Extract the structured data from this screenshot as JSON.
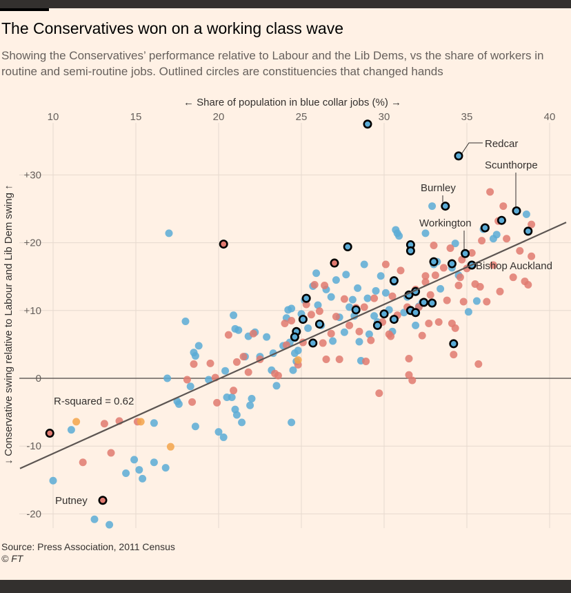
{
  "header": {
    "title": "The Conservatives won on a working class wave",
    "subtitle": "Showing the Conservatives’ performance relative to Labour and the Lib Dems, vs the share of workers in routine and semi-routine jobs. Outlined circles are constituencies that changed hands"
  },
  "footer": {
    "source": "Source: Press Association, 2011 Census",
    "credit": "© FT"
  },
  "colors": {
    "background": "#fff1e5",
    "labour_held": "#5aabd6",
    "conservative_held": "#e07a70",
    "libdem_held": "#f3a44b",
    "outline": "#000000",
    "grid": "#e6d9ce",
    "regression": "#5c5552"
  },
  "chart_data": {
    "type": "scatter",
    "title": "The Conservatives won on a working class wave",
    "xlabel": "← Share of population in blue collar jobs (%) →",
    "ylabel": "↓ Conservative swing relative to Labour and Lib Dem swing ↑",
    "xlim": [
      8,
      41
    ],
    "ylim": [
      -22,
      38
    ],
    "x_ticks": [
      "10",
      "15",
      "20",
      "25",
      "30",
      "35",
      "40"
    ],
    "x_tick_values": [
      10,
      15,
      20,
      25,
      30,
      35,
      40
    ],
    "y_ticks": [
      "+30",
      "+20",
      "+10",
      "0",
      "-10",
      "-20"
    ],
    "y_tick_values": [
      30,
      20,
      10,
      0,
      -10,
      -20
    ],
    "x_axis_position": "top",
    "grid": true,
    "r_squared_label": "R-squared = 0.62",
    "regression_line": {
      "x1": 8,
      "y1": -13.3,
      "x2": 41,
      "y2": 23.0
    },
    "annotations": [
      {
        "label": "Redcar",
        "x": 34.5,
        "y": 32.8
      },
      {
        "label": "Scunthorpe",
        "x": 38.0,
        "y": 24.7
      },
      {
        "label": "Burnley",
        "x": 33.7,
        "y": 25.4
      },
      {
        "label": "Workington",
        "x": 34.9,
        "y": 18.4
      },
      {
        "label": "Bishop Auckland",
        "x": 35.3,
        "y": 16.7
      },
      {
        "label": "Putney",
        "x": 13.0,
        "y": -18.0
      }
    ],
    "series": [
      {
        "key": "lab",
        "fill": "#5aabd6",
        "points": [
          [
            17,
            21.4
          ],
          [
            16.9,
            0
          ],
          [
            17.5,
            -3.4
          ],
          [
            17.6,
            -3.8
          ],
          [
            18,
            8.4
          ],
          [
            18.5,
            3.8
          ],
          [
            18.6,
            3.3
          ],
          [
            18.8,
            4.8
          ],
          [
            18.6,
            -7.1
          ],
          [
            18.3,
            -1.2
          ],
          [
            19.4,
            -0.2
          ],
          [
            20,
            -7.9
          ],
          [
            20.3,
            -8.7
          ],
          [
            20.5,
            -2.8
          ],
          [
            20.4,
            1.1
          ],
          [
            20.8,
            -2.8
          ],
          [
            21,
            -4.6
          ],
          [
            21.1,
            -5.4
          ],
          [
            21.4,
            -6.5
          ],
          [
            21.6,
            3.2
          ],
          [
            21,
            7.3
          ],
          [
            21.2,
            7.1
          ],
          [
            20.9,
            9.3
          ],
          [
            21.8,
            6.2
          ],
          [
            21.9,
            -4
          ],
          [
            22.2,
            6.8
          ],
          [
            22.5,
            3.2
          ],
          [
            22.9,
            6.1
          ],
          [
            23.2,
            1.2
          ],
          [
            23.3,
            3.7
          ],
          [
            23.5,
            -1.1
          ],
          [
            23.9,
            4.8
          ],
          [
            24.2,
            10.1
          ],
          [
            24.4,
            10.3
          ],
          [
            24.1,
            8.9
          ],
          [
            24.6,
            5.9
          ],
          [
            24.8,
            4.1
          ],
          [
            24.4,
            -6.5
          ],
          [
            24.7,
            2.5
          ],
          [
            24.3,
            5.3
          ],
          [
            24.6,
            3.7
          ],
          [
            24.5,
            1.2
          ],
          [
            25,
            9.5
          ],
          [
            25.2,
            11.5
          ],
          [
            25.4,
            7.4
          ],
          [
            25.7,
            13.6
          ],
          [
            25.9,
            15.5
          ],
          [
            26,
            10.8
          ],
          [
            26.2,
            7.8
          ],
          [
            26.5,
            13.1
          ],
          [
            26.8,
            12
          ],
          [
            26.9,
            5.5
          ],
          [
            27.1,
            14.5
          ],
          [
            27.3,
            9
          ],
          [
            27.6,
            6.8
          ],
          [
            27.7,
            15.3
          ],
          [
            27.9,
            10.5
          ],
          [
            28.1,
            11.6
          ],
          [
            28.2,
            9.2
          ],
          [
            28.4,
            13.3
          ],
          [
            28.5,
            5.4
          ],
          [
            28.6,
            2.6
          ],
          [
            28.8,
            16.8
          ],
          [
            29,
            11.8
          ],
          [
            29.1,
            6.5
          ],
          [
            29.4,
            9.2
          ],
          [
            29.5,
            12.9
          ],
          [
            29.6,
            8.3
          ],
          [
            29.8,
            15.1
          ],
          [
            30.1,
            12.6
          ],
          [
            30.3,
            10.1
          ],
          [
            30.5,
            6.9
          ],
          [
            30.6,
            14.2
          ],
          [
            30.7,
            21.9
          ],
          [
            30.8,
            21.4
          ],
          [
            30.9,
            21
          ],
          [
            31.2,
            9.7
          ],
          [
            31.4,
            12
          ],
          [
            31.6,
            19
          ],
          [
            32.3,
            11.2
          ],
          [
            32.5,
            21.4
          ],
          [
            32.9,
            25.4
          ],
          [
            33,
            16.8
          ],
          [
            33.2,
            17.2
          ],
          [
            33.4,
            13.2
          ],
          [
            34.1,
            16.3
          ],
          [
            34.3,
            19.9
          ],
          [
            34.5,
            15.2
          ],
          [
            35.1,
            9.8
          ],
          [
            35.6,
            11.4
          ],
          [
            36,
            22
          ],
          [
            36.6,
            20.6
          ],
          [
            36.8,
            21.2
          ],
          [
            38.6,
            24.2
          ],
          [
            10,
            -15.1
          ],
          [
            11.1,
            -7.6
          ],
          [
            12.5,
            -20.8
          ],
          [
            13.4,
            -21.6
          ],
          [
            14.4,
            -14
          ],
          [
            14.9,
            -12
          ],
          [
            15.2,
            -13.5
          ],
          [
            15.4,
            -14.8
          ],
          [
            16.1,
            -6.6
          ],
          [
            16.1,
            -12.4
          ],
          [
            16.8,
            -13.2
          ],
          [
            31.9,
            7.8
          ],
          [
            32.1,
            10.6
          ],
          [
            22,
            -3
          ]
        ]
      },
      {
        "key": "con",
        "fill": "#e07a70",
        "points": [
          [
            11.8,
            -12.4
          ],
          [
            13.1,
            -6.7
          ],
          [
            13.5,
            -11
          ],
          [
            14.0,
            -6.3
          ],
          [
            15.1,
            -6.4
          ],
          [
            18.1,
            -0.2
          ],
          [
            18.4,
            -3.5
          ],
          [
            18.5,
            2.1
          ],
          [
            19.5,
            2.2
          ],
          [
            19.8,
            0.1
          ],
          [
            19.9,
            -3.6
          ],
          [
            20.6,
            6.4
          ],
          [
            20.9,
            -1.8
          ],
          [
            21.1,
            2.4
          ],
          [
            21.5,
            3.2
          ],
          [
            21.8,
            0.9
          ],
          [
            22.1,
            6.6
          ],
          [
            22.5,
            2.8
          ],
          [
            23.4,
            0.7
          ],
          [
            23.6,
            0.4
          ],
          [
            24,
            8.1
          ],
          [
            24.1,
            4.9
          ],
          [
            24.4,
            8.5
          ],
          [
            24.8,
            2
          ],
          [
            25.1,
            5.3
          ],
          [
            25.3,
            10.9
          ],
          [
            25.6,
            9.4
          ],
          [
            25.8,
            13.8
          ],
          [
            26.1,
            9.9
          ],
          [
            26.3,
            5.2
          ],
          [
            26.5,
            2.8
          ],
          [
            26.8,
            6.6
          ],
          [
            27.1,
            9.1
          ],
          [
            27.3,
            2.8
          ],
          [
            27.6,
            11.7
          ],
          [
            27.9,
            7.8
          ],
          [
            28.3,
            10.4
          ],
          [
            28.5,
            6.9
          ],
          [
            28.8,
            10.5
          ],
          [
            29.2,
            5.6
          ],
          [
            29.4,
            11.8
          ],
          [
            29.7,
            -2.2
          ],
          [
            29.9,
            8.3
          ],
          [
            30.1,
            16.8
          ],
          [
            30.3,
            6.5
          ],
          [
            30.5,
            12.1
          ],
          [
            30.8,
            9.3
          ],
          [
            31,
            15.9
          ],
          [
            31.4,
            10.5
          ],
          [
            31.5,
            2.9
          ],
          [
            31.5,
            0.5
          ],
          [
            31.7,
            -0.3
          ],
          [
            31.9,
            13.1
          ],
          [
            32.1,
            10.5
          ],
          [
            32.3,
            6.3
          ],
          [
            32.5,
            14.2
          ],
          [
            32.7,
            8.1
          ],
          [
            32.8,
            12.3
          ],
          [
            33,
            19.6
          ],
          [
            33.1,
            15.2
          ],
          [
            33.3,
            8.3
          ],
          [
            33.6,
            16.3
          ],
          [
            33.8,
            11.5
          ],
          [
            34,
            19.2
          ],
          [
            34.1,
            8.1
          ],
          [
            34.2,
            3.5
          ],
          [
            34.3,
            7.4
          ],
          [
            34.5,
            13.7
          ],
          [
            34.6,
            14.9
          ],
          [
            34.7,
            17.5
          ],
          [
            34.8,
            11.3
          ],
          [
            35,
            16.2
          ],
          [
            35.3,
            18.5
          ],
          [
            35.5,
            13.9
          ],
          [
            35.8,
            13.5
          ],
          [
            35.9,
            20.3
          ],
          [
            36.2,
            11.3
          ],
          [
            36.4,
            27.5
          ],
          [
            36.6,
            16.7
          ],
          [
            36.9,
            23.2
          ],
          [
            37,
            12.8
          ],
          [
            37.2,
            25.4
          ],
          [
            37.4,
            20.6
          ],
          [
            37.8,
            14.9
          ],
          [
            38.2,
            18.8
          ],
          [
            38.5,
            14.3
          ],
          [
            38.7,
            13.8
          ],
          [
            38.9,
            22.7
          ],
          [
            38.9,
            18
          ],
          [
            35.7,
            2.1
          ],
          [
            28.9,
            2.5
          ],
          [
            26.4,
            13.7
          ],
          [
            30.4,
            6.2
          ],
          [
            32.5,
            15.1
          ]
        ]
      },
      {
        "key": "ld",
        "fill": "#f3a44b",
        "points": [
          [
            11.4,
            -6.4
          ],
          [
            15.3,
            -6.4
          ],
          [
            17.1,
            -10.1
          ],
          [
            24.8,
            2.7
          ]
        ]
      },
      {
        "key": "lab_flip",
        "fill": "#5aabd6",
        "outlined": true,
        "points": [
          [
            29.0,
            37.5
          ],
          [
            34.5,
            32.8
          ],
          [
            33.7,
            25.4
          ],
          [
            38.0,
            24.7
          ],
          [
            37.1,
            23.3
          ],
          [
            36.1,
            22.2
          ],
          [
            38.7,
            21.7
          ],
          [
            31.6,
            19.7
          ],
          [
            31.6,
            18.8
          ],
          [
            27.8,
            19.4
          ],
          [
            34.9,
            18.4
          ],
          [
            33.0,
            17.2
          ],
          [
            34.1,
            16.9
          ],
          [
            35.3,
            16.7
          ],
          [
            30.6,
            14.4
          ],
          [
            31.9,
            12.8
          ],
          [
            31.5,
            12.3
          ],
          [
            32.4,
            11.2
          ],
          [
            32.9,
            11.1
          ],
          [
            31.6,
            10.0
          ],
          [
            31.9,
            9.7
          ],
          [
            30.0,
            9.5
          ],
          [
            28.3,
            10.1
          ],
          [
            30.6,
            8.7
          ],
          [
            25.3,
            11.8
          ],
          [
            25.1,
            8.7
          ],
          [
            24.7,
            6.9
          ],
          [
            24.6,
            6.1
          ],
          [
            26.1,
            8.0
          ],
          [
            25.7,
            5.2
          ],
          [
            29.6,
            7.8
          ],
          [
            34.2,
            5.1
          ]
        ]
      },
      {
        "key": "con_flip",
        "fill": "#e07a70",
        "outlined": true,
        "points": [
          [
            9.8,
            -8.1
          ],
          [
            13.0,
            -18.0
          ],
          [
            20.3,
            19.8
          ],
          [
            27.0,
            17.0
          ]
        ]
      }
    ]
  }
}
